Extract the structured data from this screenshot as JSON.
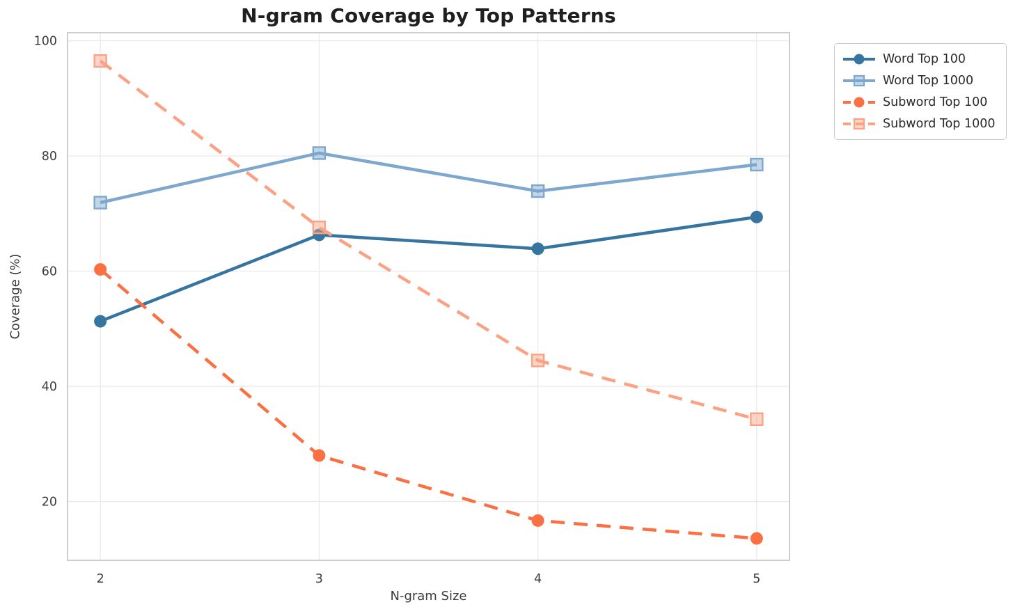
{
  "chart_data": {
    "type": "line",
    "title": "N-gram Coverage by Top Patterns",
    "xlabel": "N-gram Size",
    "ylabel": "Coverage (%)",
    "x": [
      2,
      3,
      4,
      5
    ],
    "x_tick_labels": [
      "2",
      "3",
      "4",
      "5"
    ],
    "y_ticks": [
      20,
      40,
      60,
      80,
      100
    ],
    "xlim": [
      1.85,
      5.15
    ],
    "ylim": [
      9.8,
      101.4
    ],
    "grid": true,
    "legend_position": "outside-top-right",
    "series": [
      {
        "name": "Word Top 100",
        "values": [
          51.3,
          66.3,
          63.9,
          69.4
        ],
        "color": "#36759f",
        "line": "solid",
        "marker": "circle"
      },
      {
        "name": "Word Top 1000",
        "values": [
          71.9,
          80.5,
          73.9,
          78.5
        ],
        "color": "#7da7cd",
        "line": "solid",
        "marker": "square"
      },
      {
        "name": "Subword Top 100",
        "values": [
          60.3,
          28.0,
          16.7,
          13.6
        ],
        "color": "#fa7043",
        "line": "dashed",
        "marker": "circle"
      },
      {
        "name": "Subword Top 1000",
        "values": [
          96.5,
          67.6,
          44.5,
          34.3
        ],
        "color": "#fba184",
        "line": "dashed",
        "marker": "square"
      }
    ],
    "colors": {
      "grid": "#eaeaea",
      "spine": "#c9c9c9",
      "tick_text": "#3c3c3c",
      "title_text": "#1f1f1f"
    }
  }
}
